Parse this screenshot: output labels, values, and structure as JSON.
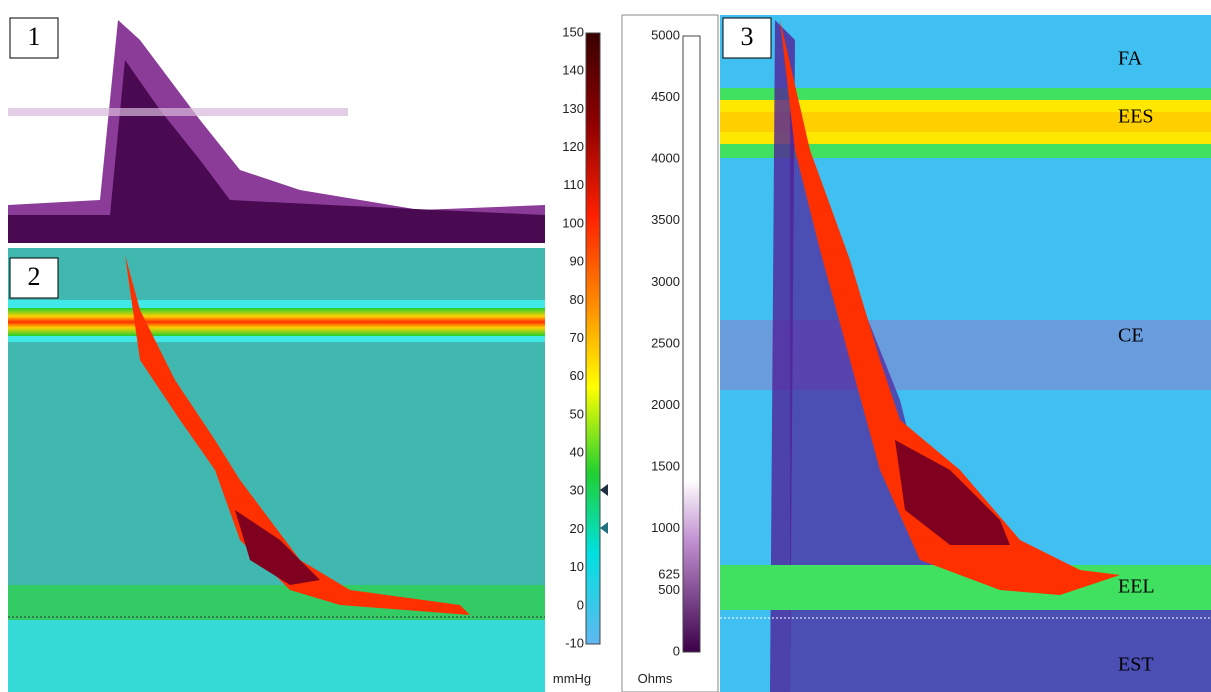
{
  "panels": [
    "1",
    "2",
    "3"
  ],
  "pressure_scale": {
    "ticks": [
      150,
      140,
      130,
      120,
      110,
      100,
      90,
      80,
      70,
      60,
      50,
      40,
      30,
      20,
      10,
      0,
      -10
    ],
    "unit": "mmHg"
  },
  "impedance_scale": {
    "ticks": [
      5000,
      4500,
      4000,
      3500,
      3000,
      2500,
      2000,
      1500,
      1000,
      625,
      500,
      0
    ],
    "unit": "Ohms"
  },
  "landmarks": [
    "FA",
    "EES",
    "CE",
    "EEL",
    "EST"
  ]
}
